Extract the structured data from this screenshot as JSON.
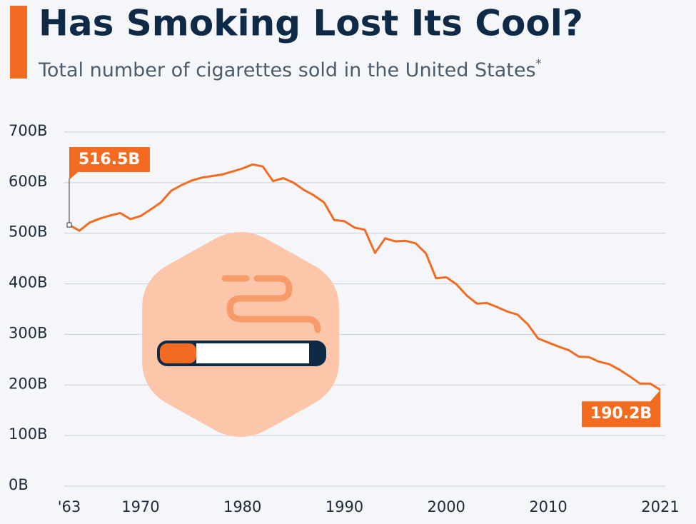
{
  "chart_data": {
    "type": "line",
    "title": "Has Smoking Lost Its Cool?",
    "subtitle": "Total number of cigarettes sold in the United States",
    "footnote_marker": "*",
    "x": [
      1963,
      1964,
      1965,
      1966,
      1967,
      1968,
      1969,
      1970,
      1971,
      1972,
      1973,
      1974,
      1975,
      1976,
      1977,
      1978,
      1979,
      1980,
      1981,
      1982,
      1983,
      1984,
      1985,
      1986,
      1987,
      1988,
      1989,
      1990,
      1991,
      1992,
      1993,
      1994,
      1995,
      1996,
      1997,
      1998,
      1999,
      2000,
      2001,
      2002,
      2003,
      2004,
      2005,
      2006,
      2007,
      2008,
      2009,
      2010,
      2011,
      2012,
      2013,
      2014,
      2015,
      2016,
      2017,
      2018,
      2019,
      2020,
      2021
    ],
    "series": [
      {
        "name": "Cigarettes sold",
        "color": "#f26b21",
        "values": [
          516.5,
          505,
          521,
          529,
          535,
          540,
          528,
          534,
          547,
          561,
          584,
          595,
          604,
          610,
          613,
          616,
          622,
          628,
          636,
          632,
          603,
          609,
          600,
          586,
          575,
          561,
          526,
          524,
          511,
          507,
          461,
          490,
          484,
          485,
          480,
          460,
          411,
          413,
          399,
          377,
          361,
          362,
          354,
          345,
          339,
          320,
          292,
          284,
          276,
          269,
          256,
          255,
          246,
          241,
          230,
          217,
          203,
          203,
          190.2
        ]
      }
    ],
    "annotations": [
      {
        "x": 1963,
        "y": 516.5,
        "label": "516.5B"
      },
      {
        "x": 2021,
        "y": 190.2,
        "label": "190.2B"
      }
    ],
    "xlim": [
      1963,
      2021
    ],
    "xticks": [
      {
        "value": 1963,
        "label": "'63"
      },
      1970,
      1980,
      1990,
      2000,
      2010,
      2021
    ],
    "ylim": [
      0,
      700
    ],
    "yticks": [
      {
        "value": 0,
        "label": "0B"
      },
      {
        "value": 100,
        "label": "100B"
      },
      {
        "value": 200,
        "label": "200B"
      },
      {
        "value": 300,
        "label": "300B"
      },
      {
        "value": 400,
        "label": "400B"
      },
      {
        "value": 500,
        "label": "500B"
      },
      {
        "value": 600,
        "label": "600B"
      },
      {
        "value": 700,
        "label": "700B"
      }
    ],
    "grid": true
  }
}
